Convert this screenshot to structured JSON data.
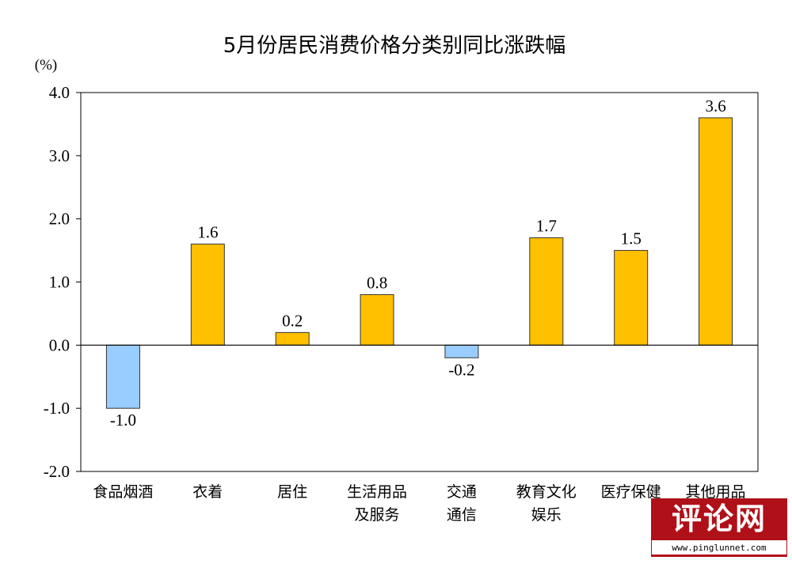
{
  "chart_data": {
    "type": "bar",
    "title": "5月份居民消费价格分类别同比涨跌幅",
    "unit_label": "(%)",
    "categories": [
      [
        "食品烟酒"
      ],
      [
        "衣着"
      ],
      [
        "居住"
      ],
      [
        "生活用品",
        "及服务"
      ],
      [
        "交通",
        "通信"
      ],
      [
        "教育文化",
        "娱乐"
      ],
      [
        "医疗保健"
      ],
      [
        "其他用品"
      ]
    ],
    "values": [
      -1.0,
      1.6,
      0.2,
      0.8,
      -0.2,
      1.7,
      1.5,
      3.6
    ],
    "value_labels": [
      "-1.0",
      "1.6",
      "0.2",
      "0.8",
      "-0.2",
      "1.7",
      "1.5",
      "3.6"
    ],
    "ylim": [
      -2.0,
      4.0
    ],
    "yticks": [
      4.0,
      3.0,
      2.0,
      1.0,
      0.0,
      -1.0,
      -2.0
    ],
    "ytick_labels": [
      "4.0",
      "3.0",
      "2.0",
      "1.0",
      "0.0",
      "-1.0",
      "-2.0"
    ],
    "grid": false,
    "colors": {
      "positive": "#FFC000",
      "negative": "#99CCFF",
      "bar_border": "#333333",
      "axis": "#000000"
    }
  },
  "watermark": {
    "text": "评论网",
    "url": "www.pinglunnet.com",
    "color": "#b01018"
  }
}
